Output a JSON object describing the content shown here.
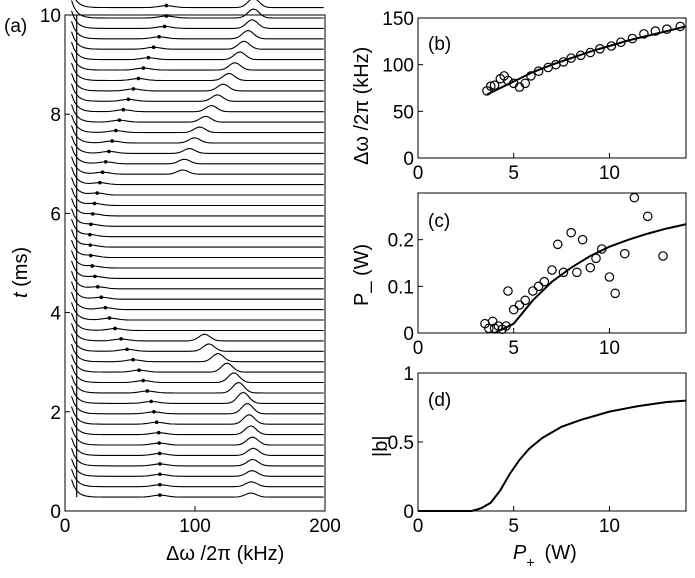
{
  "chart_data": [
    {
      "panel": "(a)",
      "type": "line",
      "xlabel": "Δω /2π  (kHz)",
      "ylabel_italic": "t",
      "ylabel_rest": " (ms)",
      "xlim": [
        0,
        200
      ],
      "ylim": [
        0,
        10
      ],
      "xticks": [
        "0",
        "100",
        "200"
      ],
      "yticks": [
        "0",
        "2",
        "4",
        "6",
        "8",
        "10"
      ],
      "spectra_count": 48,
      "spectra_spacing_ms": 0.21,
      "peak_track": [
        {
          "t": 0.3,
          "f": 73
        },
        {
          "t": 1.0,
          "f": 73
        },
        {
          "t": 1.6,
          "f": 72
        },
        {
          "t": 2.2,
          "f": 66
        },
        {
          "t": 2.8,
          "f": 57
        },
        {
          "t": 3.3,
          "f": 46
        },
        {
          "t": 3.8,
          "f": 35
        },
        {
          "t": 4.4,
          "f": 26
        },
        {
          "t": 5.0,
          "f": 20
        },
        {
          "t": 5.6,
          "f": 19
        },
        {
          "t": 6.2,
          "f": 23
        },
        {
          "t": 6.8,
          "f": 29
        },
        {
          "t": 7.4,
          "f": 36
        },
        {
          "t": 8.0,
          "f": 44
        },
        {
          "t": 8.6,
          "f": 55
        },
        {
          "t": 9.2,
          "f": 66
        },
        {
          "t": 9.8,
          "f": 78
        }
      ],
      "sideband_peaks": [
        {
          "t": 0.3,
          "f": 143
        },
        {
          "t": 1.2,
          "f": 145
        },
        {
          "t": 2.0,
          "f": 140
        },
        {
          "t": 2.7,
          "f": 128
        },
        {
          "t": 3.3,
          "f": 108
        },
        {
          "t": 6.9,
          "f": 90
        },
        {
          "t": 7.6,
          "f": 103
        },
        {
          "t": 8.3,
          "f": 118
        },
        {
          "t": 9.0,
          "f": 133
        },
        {
          "t": 9.8,
          "f": 145
        }
      ]
    },
    {
      "panel": "(b)",
      "type": "scatter",
      "ylabel": "Δω /2π  (kHz)",
      "xlim": [
        0,
        14
      ],
      "ylim": [
        0,
        150
      ],
      "xticks": [
        "0",
        "5",
        "10"
      ],
      "yticks": [
        "0",
        "50",
        "100",
        "150"
      ],
      "points": [
        [
          3.6,
          72
        ],
        [
          3.8,
          77
        ],
        [
          4.0,
          78
        ],
        [
          4.3,
          85
        ],
        [
          4.5,
          88
        ],
        [
          4.7,
          83
        ],
        [
          5.0,
          80
        ],
        [
          5.3,
          76
        ],
        [
          5.6,
          80
        ],
        [
          5.9,
          88
        ],
        [
          6.3,
          93
        ],
        [
          6.8,
          97
        ],
        [
          7.2,
          100
        ],
        [
          7.6,
          103
        ],
        [
          8.0,
          107
        ],
        [
          8.5,
          110
        ],
        [
          9.0,
          113
        ],
        [
          9.5,
          117
        ],
        [
          10.1,
          120
        ],
        [
          10.6,
          124
        ],
        [
          11.2,
          128
        ],
        [
          11.8,
          133
        ],
        [
          12.4,
          136
        ],
        [
          13.0,
          138
        ],
        [
          13.7,
          141
        ]
      ],
      "fit": [
        [
          3.6,
          68
        ],
        [
          5,
          82
        ],
        [
          6,
          92
        ],
        [
          7,
          100
        ],
        [
          8,
          107
        ],
        [
          9,
          114
        ],
        [
          10,
          120
        ],
        [
          11,
          126
        ],
        [
          12,
          131
        ],
        [
          13,
          136
        ],
        [
          14,
          141
        ]
      ]
    },
    {
      "panel": "(c)",
      "type": "scatter",
      "ylabel": "P_ (W)",
      "xlim": [
        0,
        14
      ],
      "ylim": [
        0,
        0.3
      ],
      "xticks": [
        "0",
        "5",
        "10"
      ],
      "yticks": [
        "0",
        "0.1",
        "0.2"
      ],
      "points": [
        [
          3.5,
          0.02
        ],
        [
          3.7,
          0.01
        ],
        [
          3.9,
          0.025
        ],
        [
          4.0,
          0.01
        ],
        [
          4.2,
          0.015
        ],
        [
          4.4,
          0.008
        ],
        [
          4.6,
          0.015
        ],
        [
          4.7,
          0.09
        ],
        [
          5.0,
          0.05
        ],
        [
          5.3,
          0.06
        ],
        [
          5.6,
          0.07
        ],
        [
          6.0,
          0.09
        ],
        [
          6.3,
          0.1
        ],
        [
          6.6,
          0.11
        ],
        [
          7.0,
          0.135
        ],
        [
          7.3,
          0.19
        ],
        [
          7.6,
          0.13
        ],
        [
          8.0,
          0.215
        ],
        [
          8.3,
          0.13
        ],
        [
          8.6,
          0.2
        ],
        [
          9.0,
          0.14
        ],
        [
          9.3,
          0.16
        ],
        [
          9.6,
          0.18
        ],
        [
          10.0,
          0.12
        ],
        [
          10.3,
          0.085
        ],
        [
          10.8,
          0.17
        ],
        [
          11.3,
          0.29
        ],
        [
          12.0,
          0.25
        ],
        [
          12.8,
          0.165
        ]
      ],
      "fit": [
        [
          4,
          0
        ],
        [
          5,
          0.02
        ],
        [
          6,
          0.07
        ],
        [
          7,
          0.11
        ],
        [
          8,
          0.14
        ],
        [
          9,
          0.165
        ],
        [
          10,
          0.185
        ],
        [
          11,
          0.2
        ],
        [
          12,
          0.213
        ],
        [
          13,
          0.224
        ],
        [
          14,
          0.233
        ]
      ]
    },
    {
      "panel": "(d)",
      "type": "line",
      "ylabel": "|b|",
      "xlabel_var": "P",
      "xlabel_sub": "+",
      "xlabel_unit": "(W)",
      "xlim": [
        0,
        14
      ],
      "ylim": [
        0,
        1
      ],
      "xticks": [
        "0",
        "5",
        "10"
      ],
      "yticks": [
        "0",
        "0.5",
        "1"
      ],
      "curve": [
        [
          0,
          0
        ],
        [
          2.8,
          0
        ],
        [
          3.3,
          0.02
        ],
        [
          3.8,
          0.06
        ],
        [
          4.3,
          0.15
        ],
        [
          4.8,
          0.27
        ],
        [
          5.3,
          0.37
        ],
        [
          5.8,
          0.45
        ],
        [
          6.5,
          0.53
        ],
        [
          7.5,
          0.61
        ],
        [
          8.5,
          0.66
        ],
        [
          10,
          0.72
        ],
        [
          11.5,
          0.76
        ],
        [
          13,
          0.79
        ],
        [
          14,
          0.8
        ]
      ]
    }
  ]
}
